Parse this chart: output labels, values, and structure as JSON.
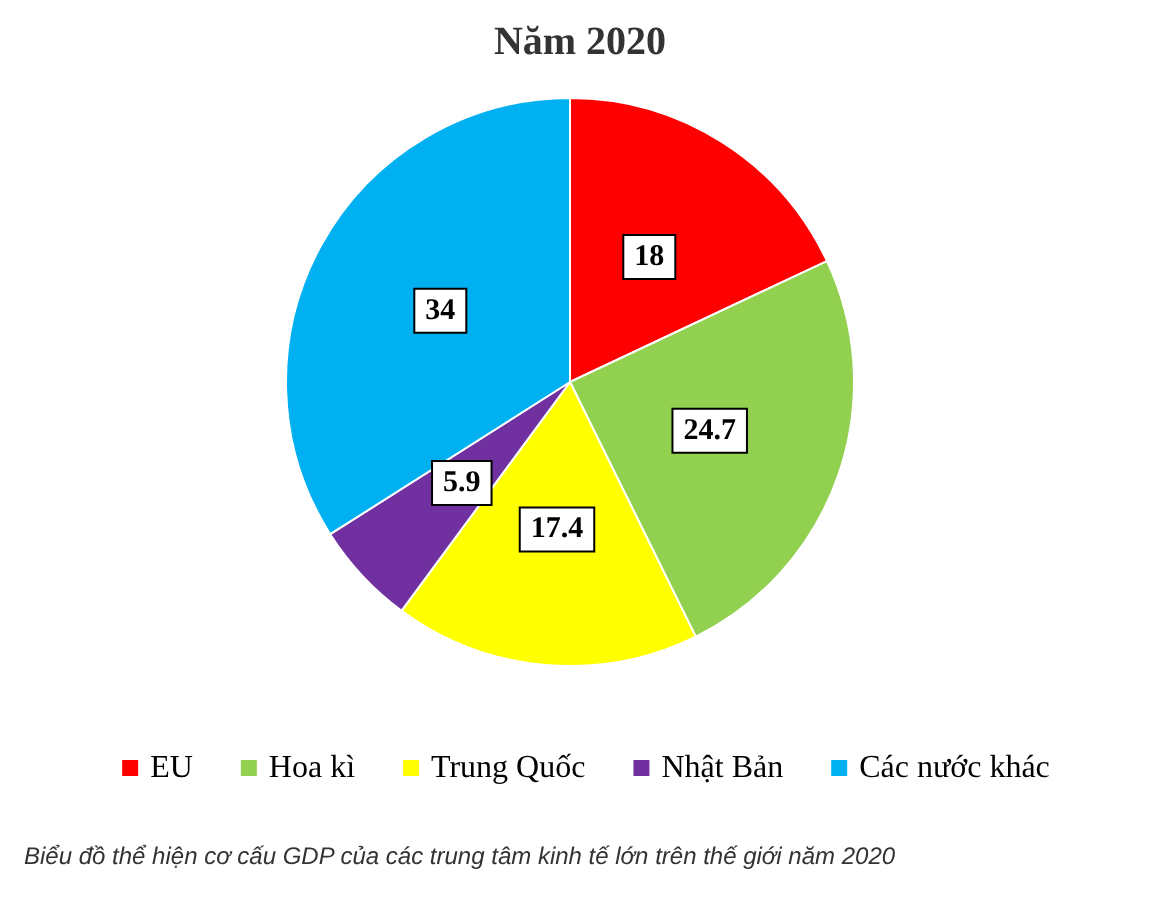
{
  "chart_data": {
    "type": "pie",
    "title": "Năm 2020",
    "categories": [
      "EU",
      "Hoa kì",
      "Trung Quốc",
      "Nhật Bản",
      "Các nước khác"
    ],
    "values": [
      18,
      24.7,
      17.4,
      5.9,
      34
    ],
    "colors": [
      "#ff0000",
      "#92d050",
      "#ffff00",
      "#7030a0",
      "#00b0f0"
    ],
    "data_labels": true,
    "legend": "bottom",
    "annotations": [
      "Biểu đồ thể hiện cơ cấu GDP của các trung tâm kinh tế lớn trên thế giới năm 2020"
    ]
  }
}
